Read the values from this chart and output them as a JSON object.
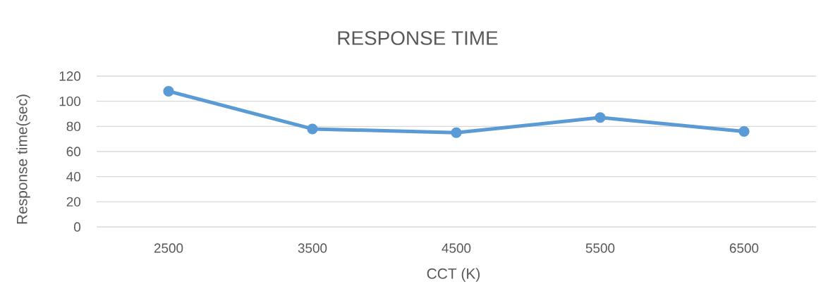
{
  "chart_data": {
    "type": "line",
    "title": "RESPONSE TIME",
    "xlabel": "CCT (K)",
    "ylabel": "Response time(sec)",
    "categories": [
      "2500",
      "3500",
      "4500",
      "5500",
      "6500"
    ],
    "series": [
      {
        "color": "#5b9bd5",
        "values": [
          108,
          78,
          75,
          87,
          76
        ]
      }
    ],
    "ylim": [
      0,
      120
    ],
    "yticks": [
      0,
      20,
      40,
      60,
      80,
      100,
      120
    ],
    "grid": "y",
    "marker": "circle",
    "line_style": "solid"
  }
}
